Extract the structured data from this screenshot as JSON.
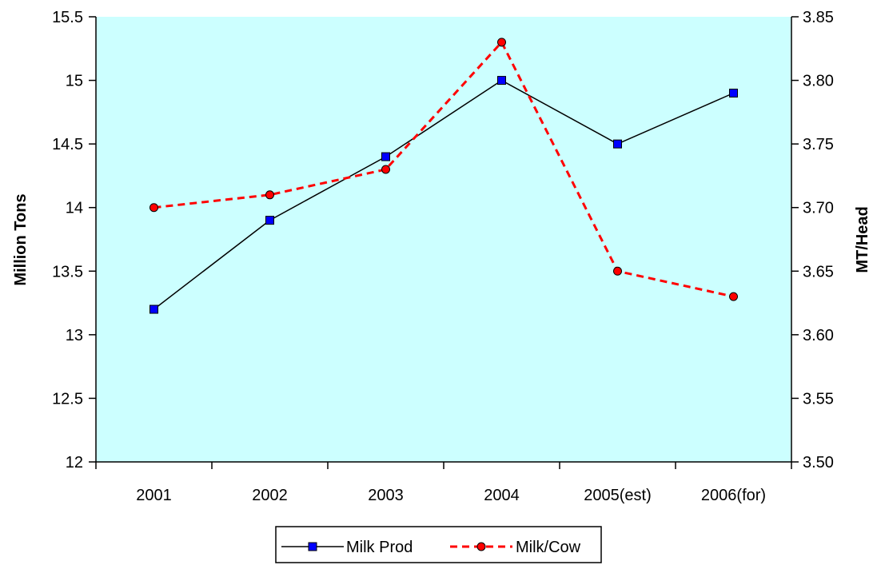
{
  "chart_data": {
    "type": "line",
    "categories": [
      "2001",
      "2002",
      "2003",
      "2004",
      "2005(est)",
      "2006(for)"
    ],
    "series": [
      {
        "name": "Milk Prod",
        "axis": "left",
        "values": [
          13.2,
          13.9,
          14.4,
          15.0,
          14.5,
          14.9
        ],
        "color": "#000000",
        "marker": "square",
        "marker_color": "#0000ff",
        "line_style": "solid"
      },
      {
        "name": "Milk/Cow",
        "axis": "right",
        "values": [
          3.7,
          3.71,
          3.73,
          3.83,
          3.65,
          3.63
        ],
        "color": "#ff0000",
        "marker": "circle",
        "marker_color": "#ff0000",
        "line_style": "dashed"
      }
    ],
    "ylabel": "Million Tons",
    "y2label": "MT/Head",
    "ylim": [
      12,
      15.5
    ],
    "y2lim": [
      3.5,
      3.85
    ],
    "yticks": [
      "12",
      "12.5",
      "13",
      "13.5",
      "14",
      "14.5",
      "15",
      "15.5"
    ],
    "y2ticks": [
      "3.50",
      "3.55",
      "3.60",
      "3.65",
      "3.70",
      "3.75",
      "3.80",
      "3.85"
    ],
    "plot_background": "#ccffff",
    "grid": false,
    "legend_position": "bottom"
  }
}
